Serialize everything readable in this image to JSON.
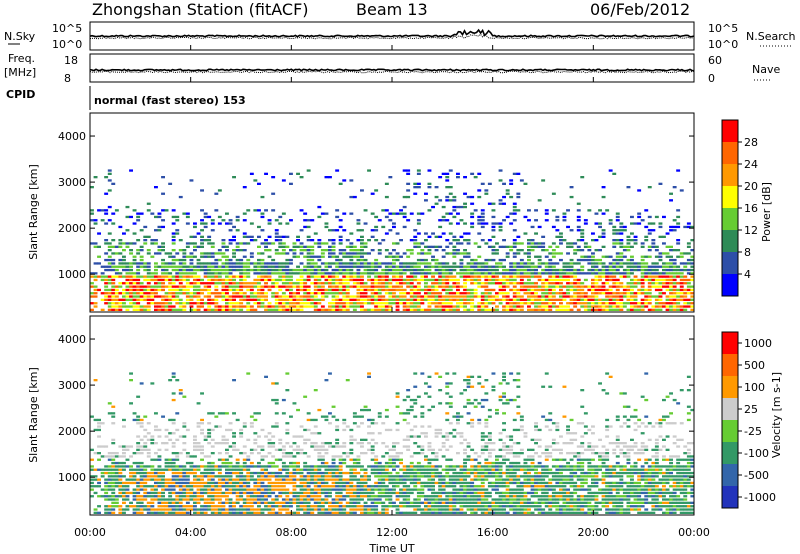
{
  "header": {
    "station": "Zhongshan Station (fitACF)",
    "beam": "Beam 13",
    "date": "06/Feb/2012"
  },
  "top_panels": {
    "nsky_label": "N.Sky",
    "nsky_ticks": [
      "10^5",
      "10^0"
    ],
    "nsearch_label": "N.Search",
    "nsearch_ticks": [
      "10^5",
      "10^0"
    ],
    "freq_label_1": "Freq.",
    "freq_label_2": "[MHz]",
    "freq_ticks": [
      "18",
      "8"
    ],
    "nave_label": "Nave",
    "nave_ticks": [
      "60",
      "0"
    ],
    "cpid_label": "CPID",
    "cpid_text": "normal (fast stereo) 153"
  },
  "chart_data": [
    {
      "type": "heatmap",
      "name": "power-panel",
      "ylabel": "Slant Range [km]",
      "ylim": [
        180,
        4500
      ],
      "yticks": [
        "1000",
        "2000",
        "3000",
        "4000"
      ],
      "yticks_values": [
        1000,
        2000,
        3000,
        4000
      ],
      "colorbar_label": "Power [dB]",
      "colorbar_ticks": [
        "4",
        "8",
        "12",
        "16",
        "20",
        "24",
        "28"
      ],
      "colorbar_values": [
        4,
        8,
        12,
        16,
        20,
        24,
        28
      ],
      "colors": [
        "#0000ff",
        "#2d4fa8",
        "#2e8b57",
        "#66cc33",
        "#ffff00",
        "#ff9900",
        "#ff6600",
        "#ff0000"
      ]
    },
    {
      "type": "heatmap",
      "name": "velocity-panel",
      "ylabel": "Slant Range [km]",
      "ylim": [
        180,
        4500
      ],
      "yticks": [
        "1000",
        "2000",
        "3000",
        "4000"
      ],
      "yticks_values": [
        1000,
        2000,
        3000,
        4000
      ],
      "colorbar_label": "Velocity [m s-1]",
      "colorbar_ticks": [
        "1000",
        "500",
        "100",
        "25",
        "-25",
        "-100",
        "-500",
        "-1000"
      ],
      "colors": [
        "#2233bb",
        "#3366aa",
        "#339966",
        "#66cc33",
        "#cccccc",
        "#ff9900",
        "#ff6600",
        "#ff0000"
      ]
    }
  ],
  "xaxis": {
    "label": "Time UT",
    "ticks": [
      "00:00",
      "04:00",
      "08:00",
      "12:00",
      "16:00",
      "20:00",
      "00:00"
    ],
    "hours": [
      0,
      4,
      8,
      12,
      16,
      20,
      24
    ]
  }
}
